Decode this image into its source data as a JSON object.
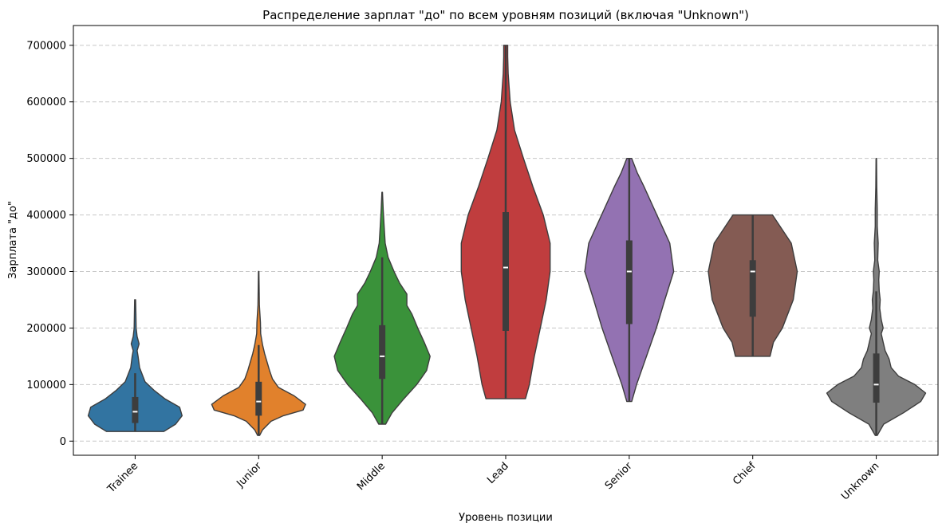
{
  "chart_data": {
    "type": "violin",
    "title": "Распределение зарплат \"до\" по всем уровням позиций (включая \"Unknown\")",
    "xlabel": "Уровень позиции",
    "ylabel": "Зарплата \"до\"",
    "ylim": [
      -25000,
      735000
    ],
    "yticks": [
      0,
      100000,
      200000,
      300000,
      400000,
      500000,
      600000,
      700000
    ],
    "ytick_labels": [
      "0",
      "100000",
      "200000",
      "300000",
      "400000",
      "500000",
      "600000",
      "700000"
    ],
    "grid": "y-dashed",
    "categories": [
      "Trainee",
      "Junior",
      "Middle",
      "Lead",
      "Senior",
      "Chief",
      "Unknown"
    ],
    "series": [
      {
        "category": "Trainee",
        "color": "#3274a1",
        "stats": {
          "min": 17000,
          "q1": 32000,
          "median": 52000,
          "q3": 78000,
          "whisker_low": 17000,
          "whisker_high": 120000,
          "max": 250000
        },
        "density": [
          [
            17000,
            0.58
          ],
          [
            30000,
            0.82
          ],
          [
            45000,
            0.95
          ],
          [
            60000,
            0.9
          ],
          [
            75000,
            0.6
          ],
          [
            90000,
            0.38
          ],
          [
            105000,
            0.2
          ],
          [
            130000,
            0.09
          ],
          [
            150000,
            0.06
          ],
          [
            160000,
            0.04
          ],
          [
            172000,
            0.08
          ],
          [
            185000,
            0.04
          ],
          [
            200000,
            0.02
          ],
          [
            225000,
            0.015
          ],
          [
            250000,
            0.01
          ]
        ]
      },
      {
        "category": "Junior",
        "color": "#e1812c",
        "stats": {
          "min": 10000,
          "q1": 45000,
          "median": 70000,
          "q3": 105000,
          "whisker_low": 10000,
          "whisker_high": 170000,
          "max": 300000
        },
        "density": [
          [
            10000,
            0.02
          ],
          [
            20000,
            0.08
          ],
          [
            35000,
            0.25
          ],
          [
            45000,
            0.5
          ],
          [
            55000,
            0.9
          ],
          [
            65000,
            0.95
          ],
          [
            80000,
            0.72
          ],
          [
            95000,
            0.4
          ],
          [
            110000,
            0.28
          ],
          [
            125000,
            0.22
          ],
          [
            140000,
            0.17
          ],
          [
            155000,
            0.12
          ],
          [
            170000,
            0.08
          ],
          [
            190000,
            0.04
          ],
          [
            210000,
            0.035
          ],
          [
            240000,
            0.015
          ],
          [
            270000,
            0.01
          ],
          [
            300000,
            0.005
          ]
        ]
      },
      {
        "category": "Middle",
        "color": "#3a923a",
        "stats": {
          "min": 30000,
          "q1": 110000,
          "median": 150000,
          "q3": 205000,
          "whisker_low": 30000,
          "whisker_high": 325000,
          "max": 440000
        },
        "density": [
          [
            30000,
            0.07
          ],
          [
            50000,
            0.2
          ],
          [
            75000,
            0.44
          ],
          [
            100000,
            0.7
          ],
          [
            125000,
            0.9
          ],
          [
            150000,
            0.97
          ],
          [
            175000,
            0.85
          ],
          [
            200000,
            0.72
          ],
          [
            225000,
            0.6
          ],
          [
            240000,
            0.5
          ],
          [
            260000,
            0.5
          ],
          [
            280000,
            0.35
          ],
          [
            300000,
            0.24
          ],
          [
            325000,
            0.12
          ],
          [
            350000,
            0.06
          ],
          [
            380000,
            0.04
          ],
          [
            410000,
            0.02
          ],
          [
            440000,
            0.005
          ]
        ]
      },
      {
        "category": "Lead",
        "color": "#c03d3e",
        "stats": {
          "min": 75000,
          "q1": 195000,
          "median": 307000,
          "q3": 405000,
          "whisker_low": 75000,
          "whisker_high": 700000,
          "max": 700000
        },
        "density": [
          [
            75000,
            0.4
          ],
          [
            100000,
            0.48
          ],
          [
            150000,
            0.58
          ],
          [
            200000,
            0.7
          ],
          [
            250000,
            0.82
          ],
          [
            300000,
            0.9
          ],
          [
            350000,
            0.9
          ],
          [
            400000,
            0.76
          ],
          [
            450000,
            0.55
          ],
          [
            500000,
            0.36
          ],
          [
            550000,
            0.18
          ],
          [
            600000,
            0.09
          ],
          [
            650000,
            0.05
          ],
          [
            680000,
            0.04
          ],
          [
            700000,
            0.04
          ]
        ]
      },
      {
        "category": "Senior",
        "color": "#9372b2",
        "stats": {
          "min": 70000,
          "q1": 207000,
          "median": 300000,
          "q3": 355000,
          "whisker_low": 70000,
          "whisker_high": 500000,
          "max": 500000
        },
        "density": [
          [
            70000,
            0.05
          ],
          [
            100000,
            0.15
          ],
          [
            150000,
            0.35
          ],
          [
            200000,
            0.55
          ],
          [
            250000,
            0.72
          ],
          [
            300000,
            0.9
          ],
          [
            350000,
            0.82
          ],
          [
            400000,
            0.56
          ],
          [
            450000,
            0.3
          ],
          [
            475000,
            0.16
          ],
          [
            500000,
            0.05
          ]
        ]
      },
      {
        "category": "Chief",
        "color": "#845b53",
        "stats": {
          "min": 150000,
          "q1": 220000,
          "median": 300000,
          "q3": 320000,
          "whisker_low": 150000,
          "whisker_high": 400000,
          "max": 400000
        },
        "density": [
          [
            150000,
            0.35
          ],
          [
            175000,
            0.42
          ],
          [
            200000,
            0.6
          ],
          [
            250000,
            0.82
          ],
          [
            300000,
            0.9
          ],
          [
            350000,
            0.78
          ],
          [
            400000,
            0.4
          ]
        ]
      },
      {
        "category": "Unknown",
        "color": "#7f7f7f",
        "stats": {
          "min": 10000,
          "q1": 68000,
          "median": 100000,
          "q3": 155000,
          "whisker_low": 10000,
          "whisker_high": 265000,
          "max": 500000
        },
        "density": [
          [
            10000,
            0.02
          ],
          [
            30000,
            0.15
          ],
          [
            50000,
            0.55
          ],
          [
            70000,
            0.9
          ],
          [
            85000,
            1.0
          ],
          [
            100000,
            0.78
          ],
          [
            115000,
            0.45
          ],
          [
            130000,
            0.3
          ],
          [
            145000,
            0.26
          ],
          [
            160000,
            0.18
          ],
          [
            175000,
            0.14
          ],
          [
            190000,
            0.1
          ],
          [
            200000,
            0.14
          ],
          [
            215000,
            0.1
          ],
          [
            235000,
            0.07
          ],
          [
            250000,
            0.08
          ],
          [
            265000,
            0.06
          ],
          [
            285000,
            0.05
          ],
          [
            300000,
            0.06
          ],
          [
            320000,
            0.03
          ],
          [
            350000,
            0.04
          ],
          [
            380000,
            0.02
          ],
          [
            410000,
            0.02
          ],
          [
            450000,
            0.01
          ],
          [
            500000,
            0.005
          ]
        ]
      }
    ]
  }
}
